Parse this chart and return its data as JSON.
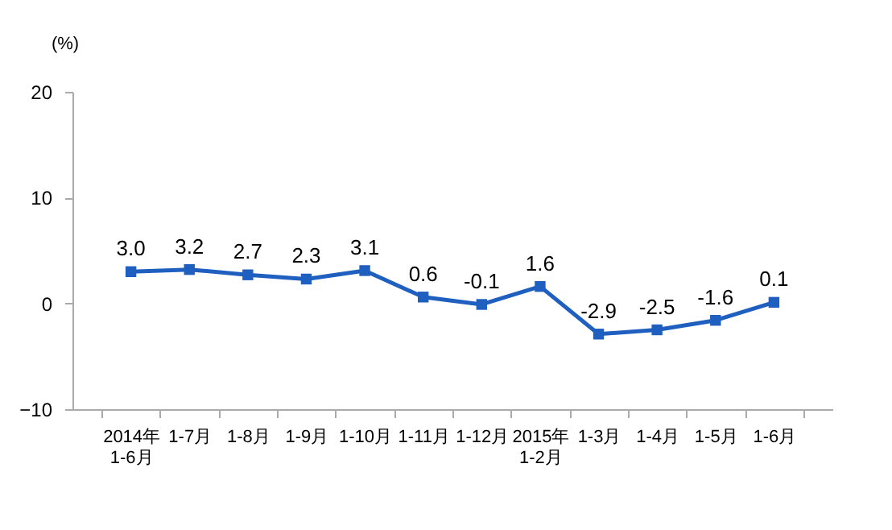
{
  "chart_data": {
    "type": "line",
    "ylabel": "(%)",
    "categories": [
      "2014年\n1-6月",
      "1-7月",
      "1-8月",
      "1-9月",
      "1-10月",
      "1-11月",
      "1-12月",
      "2015年\n1-2月",
      "1-3月",
      "1-4月",
      "1-5月",
      "1-6月"
    ],
    "series": [
      {
        "color": "#1f5fbf",
        "values": [
          3.0,
          3.2,
          2.7,
          2.3,
          3.1,
          0.6,
          -0.1,
          1.6,
          -2.9,
          -2.5,
          -1.6,
          0.1
        ],
        "value_labels": [
          "3.0",
          "3.2",
          "2.7",
          "2.3",
          "3.1",
          "0.6",
          "-0.1",
          "1.6",
          "-2.9",
          "-2.5",
          "-1.6",
          "0.1"
        ]
      }
    ],
    "ylim": [
      -10,
      20
    ],
    "yticks": [
      -10,
      0,
      10,
      20
    ],
    "grid": false,
    "marker": "square"
  }
}
